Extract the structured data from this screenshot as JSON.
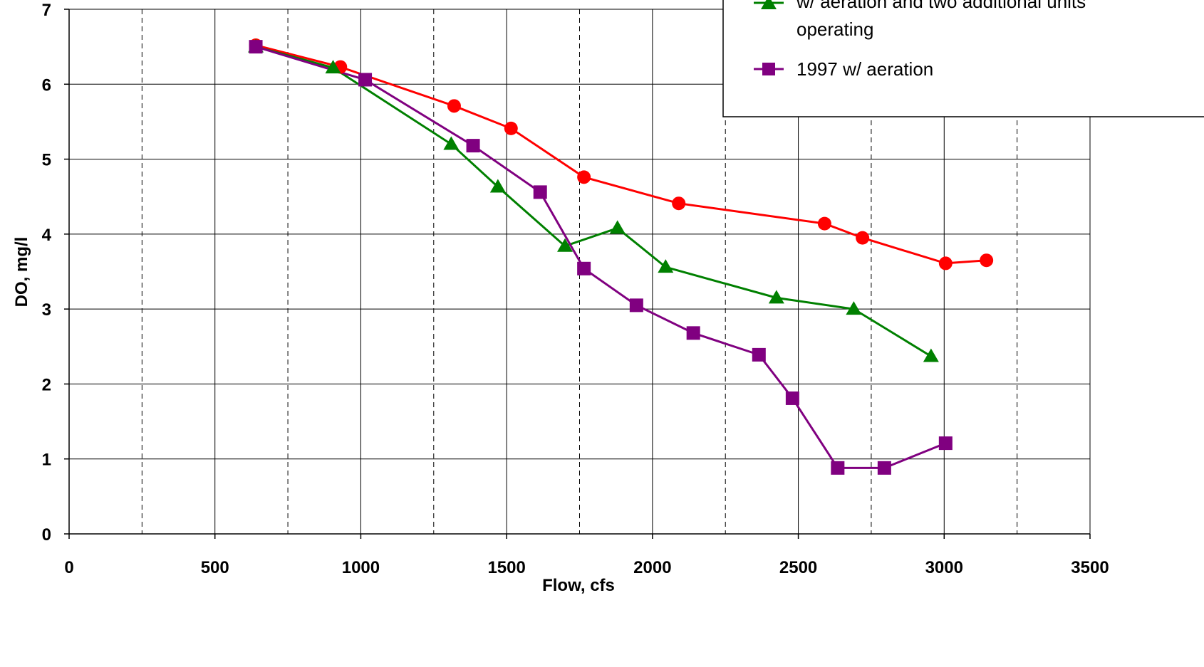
{
  "chart_data": {
    "type": "line",
    "xlabel": "Flow, cfs",
    "ylabel": "DO, mg/l",
    "xlim": [
      0,
      3500
    ],
    "ylim": [
      0,
      7
    ],
    "x_ticks": [
      0,
      500,
      1000,
      1500,
      2000,
      2500,
      3000,
      3500
    ],
    "y_ticks": [
      0,
      1,
      2,
      3,
      4,
      5,
      6,
      7
    ],
    "grid": true,
    "minor_grid_dashed_x": [
      250,
      750,
      1250,
      1750,
      2250,
      2750,
      3250
    ],
    "legend_position": "top-right",
    "series": [
      {
        "name": "",
        "color": "#ff0000",
        "marker": "circle",
        "x": [
          640,
          930,
          1320,
          1515,
          1765,
          2090,
          2590,
          2720,
          3005,
          3145
        ],
        "y": [
          6.52,
          6.23,
          5.71,
          5.41,
          4.76,
          4.41,
          4.14,
          3.95,
          3.61,
          3.65
        ]
      },
      {
        "name": "w/ aeration and two additional units operating",
        "legend_lines": [
          "w/ aeration and two additional units",
          "operating"
        ],
        "color": "#008000",
        "marker": "triangle",
        "x": [
          640,
          905,
          1310,
          1470,
          1700,
          1880,
          2045,
          2425,
          2690,
          2955
        ],
        "y": [
          6.5,
          6.22,
          5.2,
          4.63,
          3.84,
          4.08,
          3.56,
          3.15,
          3.0,
          2.37
        ]
      },
      {
        "name": "1997 w/ aeration",
        "color": "#800080",
        "marker": "square",
        "x": [
          640,
          1015,
          1385,
          1615,
          1765,
          1945,
          2140,
          2365,
          2480,
          2635,
          2795,
          3005
        ],
        "y": [
          6.5,
          6.06,
          5.18,
          4.56,
          3.54,
          3.05,
          2.68,
          2.39,
          1.81,
          0.88,
          0.88,
          1.21
        ]
      }
    ]
  }
}
